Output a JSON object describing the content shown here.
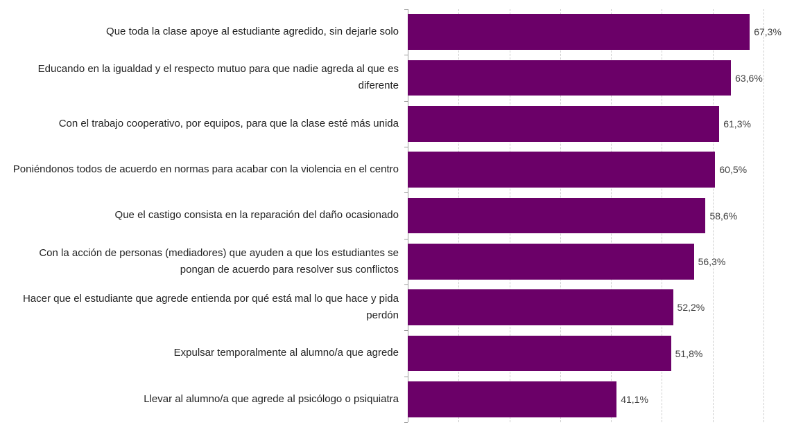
{
  "chart_data": {
    "type": "bar",
    "orientation": "horizontal",
    "categories": [
      "Que toda la clase apoye al estudiante agredido, sin dejarle solo",
      "Educando en la igualdad y el respecto mutuo para que nadie agreda al que es diferente",
      "Con el trabajo cooperativo, por equipos, para que la clase esté más unida",
      "Poniéndonos todos de acuerdo en normas para acabar con la violencia en el centro",
      "Que el castigo consista en la reparación del daño ocasionado",
      "Con la acción de personas (mediadores) que ayuden a que los estudiantes se pongan de acuerdo para resolver sus conflictos",
      "Hacer que el estudiante que agrede entienda por qué está mal lo que hace y pida perdón",
      "Expulsar temporalmente al alumno/a que agrede",
      "Llevar al alumno/a que agrede al psicólogo o psiquiatra"
    ],
    "values": [
      67.3,
      63.6,
      61.3,
      60.5,
      58.6,
      56.3,
      52.2,
      51.8,
      41.1
    ],
    "value_labels": [
      "67,3%",
      "63,6%",
      "61,3%",
      "60,5%",
      "58,6%",
      "56,3%",
      "52,2%",
      "51,8%",
      "41,1%"
    ],
    "color": "#6b0068",
    "xlim": [
      0,
      70
    ],
    "xticks": [
      0,
      10,
      20,
      30,
      40,
      50,
      60,
      70
    ],
    "grid": true
  }
}
